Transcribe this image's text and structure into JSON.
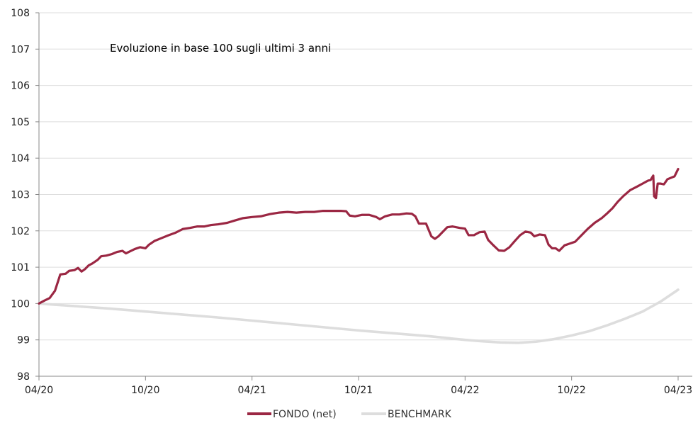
{
  "chart_data": {
    "type": "line",
    "title": "Evoluzione in base 100 sugli ultimi 3 anni",
    "xlabel": "",
    "ylabel": "",
    "x_ticks": [
      "04/20",
      "10/20",
      "04/21",
      "10/21",
      "04/22",
      "10/22",
      "04/23"
    ],
    "y_ticks": [
      98,
      99,
      100,
      101,
      102,
      103,
      104,
      105,
      106,
      107,
      108
    ],
    "xlim": [
      0,
      36
    ],
    "ylim": [
      98,
      108
    ],
    "grid": "horizontal",
    "legend_position": "bottom",
    "x_unit": "months since 04/20",
    "series": [
      {
        "name": "FONDO (net)",
        "color": "#9b2743",
        "points": [
          [
            0,
            100.0
          ],
          [
            0.3,
            100.08
          ],
          [
            0.6,
            100.15
          ],
          [
            0.9,
            100.35
          ],
          [
            1.2,
            100.8
          ],
          [
            1.5,
            100.82
          ],
          [
            1.7,
            100.9
          ],
          [
            2.0,
            100.92
          ],
          [
            2.2,
            100.98
          ],
          [
            2.4,
            100.88
          ],
          [
            2.6,
            100.95
          ],
          [
            2.8,
            101.05
          ],
          [
            3.0,
            101.1
          ],
          [
            3.3,
            101.2
          ],
          [
            3.5,
            101.3
          ],
          [
            3.8,
            101.32
          ],
          [
            4.1,
            101.36
          ],
          [
            4.4,
            101.42
          ],
          [
            4.7,
            101.45
          ],
          [
            4.9,
            101.38
          ],
          [
            5.1,
            101.43
          ],
          [
            5.4,
            101.5
          ],
          [
            5.7,
            101.55
          ],
          [
            6.0,
            101.52
          ],
          [
            6.2,
            101.62
          ],
          [
            6.5,
            101.72
          ],
          [
            6.9,
            101.8
          ],
          [
            7.3,
            101.88
          ],
          [
            7.7,
            101.95
          ],
          [
            8.1,
            102.05
          ],
          [
            8.5,
            102.08
          ],
          [
            8.9,
            102.12
          ],
          [
            9.3,
            102.12
          ],
          [
            9.7,
            102.16
          ],
          [
            10.1,
            102.18
          ],
          [
            10.6,
            102.22
          ],
          [
            11.0,
            102.28
          ],
          [
            11.5,
            102.35
          ],
          [
            12.0,
            102.38
          ],
          [
            12.5,
            102.4
          ],
          [
            13.0,
            102.46
          ],
          [
            13.5,
            102.5
          ],
          [
            14.0,
            102.52
          ],
          [
            14.5,
            102.5
          ],
          [
            15.0,
            102.52
          ],
          [
            15.5,
            102.52
          ],
          [
            16.0,
            102.55
          ],
          [
            16.5,
            102.55
          ],
          [
            17.0,
            102.55
          ],
          [
            17.3,
            102.54
          ],
          [
            17.5,
            102.42
          ],
          [
            17.8,
            102.4
          ],
          [
            18.2,
            102.44
          ],
          [
            18.6,
            102.44
          ],
          [
            19.0,
            102.38
          ],
          [
            19.2,
            102.32
          ],
          [
            19.5,
            102.4
          ],
          [
            19.9,
            102.45
          ],
          [
            20.3,
            102.45
          ],
          [
            20.7,
            102.48
          ],
          [
            21.0,
            102.47
          ],
          [
            21.2,
            102.4
          ],
          [
            21.4,
            102.2
          ],
          [
            21.8,
            102.2
          ],
          [
            22.1,
            101.85
          ],
          [
            22.3,
            101.78
          ],
          [
            22.5,
            101.85
          ],
          [
            22.8,
            102.0
          ],
          [
            23.0,
            102.1
          ],
          [
            23.3,
            102.12
          ],
          [
            23.7,
            102.08
          ],
          [
            24.0,
            102.06
          ],
          [
            24.2,
            101.88
          ],
          [
            24.5,
            101.88
          ],
          [
            24.8,
            101.96
          ],
          [
            25.1,
            101.98
          ],
          [
            25.3,
            101.75
          ],
          [
            25.6,
            101.6
          ],
          [
            25.9,
            101.46
          ],
          [
            26.2,
            101.45
          ],
          [
            26.5,
            101.55
          ],
          [
            26.8,
            101.72
          ],
          [
            27.1,
            101.88
          ],
          [
            27.4,
            101.98
          ],
          [
            27.7,
            101.95
          ],
          [
            27.9,
            101.85
          ],
          [
            28.2,
            101.9
          ],
          [
            28.5,
            101.88
          ],
          [
            28.7,
            101.62
          ],
          [
            28.9,
            101.52
          ],
          [
            29.1,
            101.52
          ],
          [
            29.3,
            101.45
          ],
          [
            29.6,
            101.6
          ],
          [
            29.9,
            101.65
          ],
          [
            30.2,
            101.7
          ],
          [
            30.5,
            101.85
          ],
          [
            30.9,
            102.05
          ],
          [
            31.3,
            102.22
          ],
          [
            31.7,
            102.35
          ],
          [
            32.0,
            102.48
          ],
          [
            32.3,
            102.62
          ],
          [
            32.6,
            102.8
          ],
          [
            32.9,
            102.95
          ],
          [
            33.3,
            103.12
          ],
          [
            33.7,
            103.22
          ],
          [
            34.0,
            103.3
          ],
          [
            34.3,
            103.38
          ],
          [
            34.45,
            103.4
          ],
          [
            34.6,
            103.52
          ],
          [
            34.65,
            102.95
          ],
          [
            34.75,
            102.9
          ],
          [
            34.85,
            103.3
          ],
          [
            35.0,
            103.3
          ],
          [
            35.2,
            103.28
          ],
          [
            35.4,
            103.42
          ],
          [
            35.8,
            103.5
          ],
          [
            36.0,
            103.7
          ]
        ]
      },
      {
        "name": "BENCHMARK",
        "color": "#dddddd",
        "points": [
          [
            0,
            100.0
          ],
          [
            2,
            99.93
          ],
          [
            4,
            99.86
          ],
          [
            6,
            99.78
          ],
          [
            8,
            99.7
          ],
          [
            10,
            99.62
          ],
          [
            12,
            99.53
          ],
          [
            14,
            99.44
          ],
          [
            16,
            99.35
          ],
          [
            18,
            99.26
          ],
          [
            20,
            99.18
          ],
          [
            22,
            99.1
          ],
          [
            24,
            99.0
          ],
          [
            25,
            98.96
          ],
          [
            26,
            98.93
          ],
          [
            27,
            98.92
          ],
          [
            28,
            98.95
          ],
          [
            29,
            99.02
          ],
          [
            30,
            99.12
          ],
          [
            31,
            99.24
          ],
          [
            32,
            99.4
          ],
          [
            33,
            99.58
          ],
          [
            34,
            99.78
          ],
          [
            35,
            100.05
          ],
          [
            36,
            100.38
          ]
        ]
      }
    ]
  }
}
